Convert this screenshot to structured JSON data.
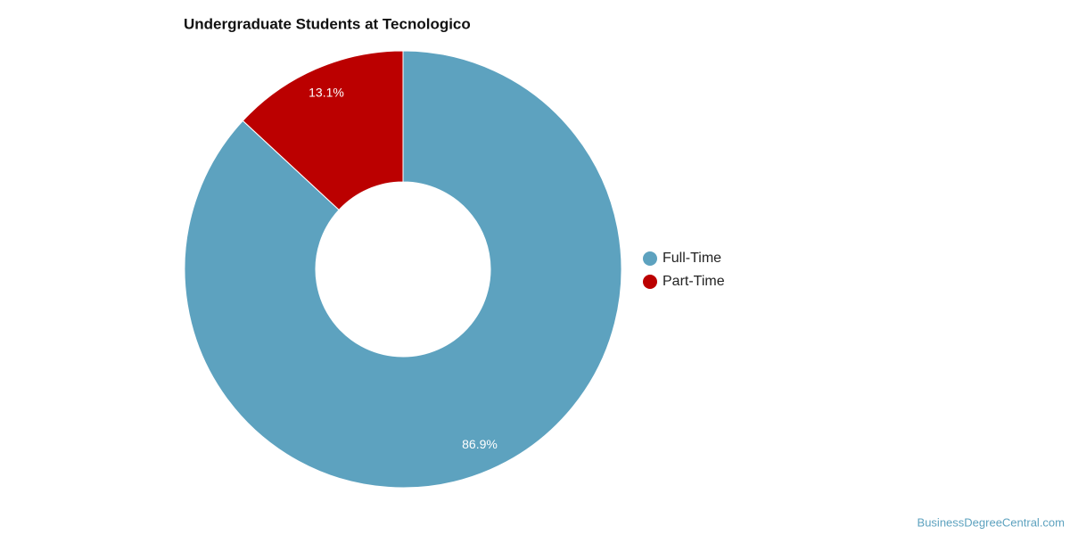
{
  "chart_data": {
    "type": "pie",
    "donut": true,
    "title": "Undergraduate Students at Tecnologico",
    "categories": [
      "Full-Time",
      "Part-Time"
    ],
    "values": [
      86.9,
      13.1
    ],
    "value_labels": [
      "86.9%",
      "13.1%"
    ],
    "colors": [
      "#5da2bf",
      "#bb0000"
    ],
    "legend": "right",
    "source": "BusinessDegreeCentral.com"
  }
}
